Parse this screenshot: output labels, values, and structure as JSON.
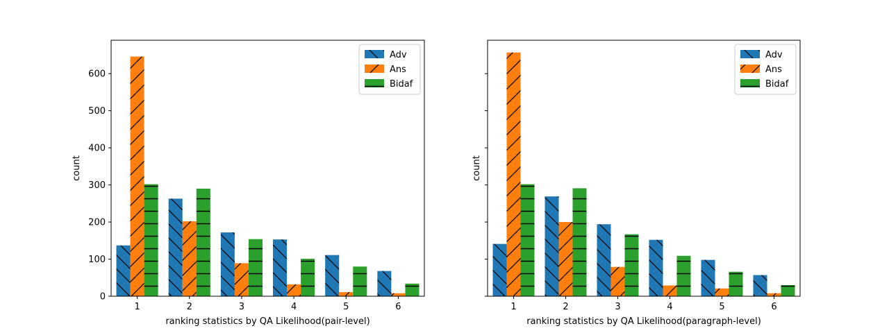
{
  "colors": {
    "Adv": "#1f77b4",
    "Ans": "#ff7f0e",
    "Bidaf": "#2ca02c"
  },
  "hatches": {
    "Adv": "backslash",
    "Ans": "slash",
    "Bidaf": "horizontal"
  },
  "chart_data": [
    {
      "type": "bar",
      "title": "",
      "xlabel": "ranking statistics by QA Likelihood(pair-level)",
      "ylabel": "count",
      "categories": [
        "1",
        "2",
        "3",
        "4",
        "5",
        "6"
      ],
      "ylim": [
        0,
        690
      ],
      "yticks": [
        0,
        100,
        200,
        300,
        400,
        500,
        600
      ],
      "legend": "top-right",
      "grid": false,
      "series": [
        {
          "name": "Adv",
          "values": [
            137,
            263,
            172,
            153,
            111,
            68
          ]
        },
        {
          "name": "Ans",
          "values": [
            646,
            202,
            89,
            32,
            11,
            8
          ]
        },
        {
          "name": "Bidaf",
          "values": [
            302,
            290,
            154,
            101,
            80,
            34
          ]
        }
      ]
    },
    {
      "type": "bar",
      "title": "",
      "xlabel": "ranking statistics by QA Likelihood(paragraph-level)",
      "ylabel": "count",
      "categories": [
        "1",
        "2",
        "3",
        "4",
        "5",
        "6"
      ],
      "ylim": [
        0,
        690
      ],
      "yticks": [
        0,
        100,
        200,
        300,
        400,
        500,
        600
      ],
      "show_ytick_labels": false,
      "legend": "top-right",
      "grid": false,
      "series": [
        {
          "name": "Adv",
          "values": [
            141,
            269,
            194,
            152,
            98,
            57
          ]
        },
        {
          "name": "Ans",
          "values": [
            657,
            200,
            79,
            29,
            21,
            8
          ]
        },
        {
          "name": "Bidaf",
          "values": [
            302,
            291,
            167,
            109,
            66,
            30
          ]
        }
      ]
    }
  ]
}
